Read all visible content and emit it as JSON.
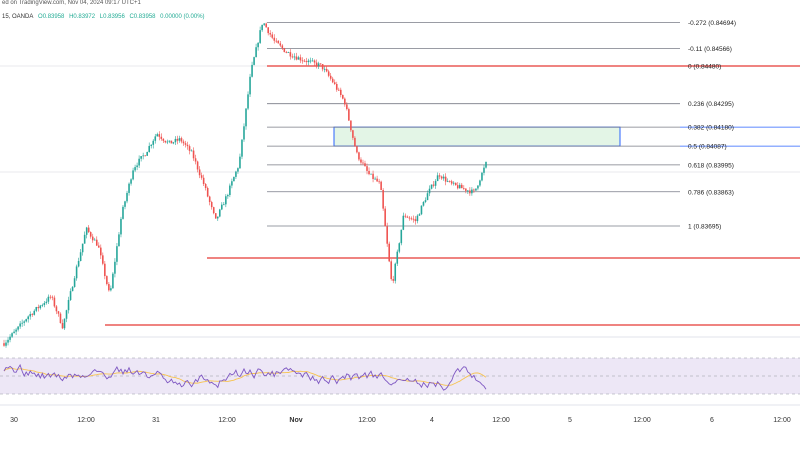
{
  "header": {
    "published": "ed on TradingView.com, Nov 04, 2024 09:17 UTC+1",
    "symbol_fragment": "15, OANDA",
    "ohlc": [
      {
        "text": "O0.83958",
        "color": "#22ab94"
      },
      {
        "text": "H0.83972",
        "color": "#22ab94"
      },
      {
        "text": "L0.83956",
        "color": "#22ab94"
      },
      {
        "text": "C0.83958",
        "color": "#22ab94"
      },
      {
        "text": "0.00000 (0.00%)",
        "color": "#22ab94"
      }
    ]
  },
  "colors": {
    "bull": "#26a69a",
    "bear": "#ef5350",
    "level_line": "#e53935",
    "fib_line": "#787b86",
    "zone_fill": "#e3f5e6",
    "zone_border": "#2962ff",
    "rsi_line": "#7e57c2",
    "rsi_ma": "#f7c34f",
    "rsi_band": "#ede7f6"
  },
  "fib_levels": [
    {
      "ratio": -0.272,
      "label": "-0.272 (0.84694)"
    },
    {
      "ratio": -0.11,
      "label": "-0.11 (0.84566)"
    },
    {
      "ratio": 0,
      "label": "0 (0.84480)"
    },
    {
      "ratio": 0.236,
      "label": "0.236 (0.84295)"
    },
    {
      "ratio": 0.382,
      "label": "0.382 (0.84180)"
    },
    {
      "ratio": 0.5,
      "label": "0.5 (0.84087)"
    },
    {
      "ratio": 0.618,
      "label": "0.618 (0.83995)"
    },
    {
      "ratio": 0.786,
      "label": "0.786 (0.83863)"
    },
    {
      "ratio": 1,
      "label": "1 (0.83695)"
    }
  ],
  "x_axis": {
    "ticks": [
      "30",
      "12:00",
      "31",
      "12:00",
      "Nov",
      "12:00",
      "4",
      "12:00",
      "5",
      "12:00",
      "6",
      "12:00"
    ]
  },
  "chart_data": {
    "type": "candlestick",
    "y_scale_note": "price levels match fibonacci labels",
    "close_path": [
      0.8312,
      0.8318,
      0.8325,
      0.833,
      0.8335,
      0.832,
      0.8345,
      0.8368,
      0.836,
      0.8335,
      0.8375,
      0.8398,
      0.8405,
      0.8415,
      0.841,
      0.8412,
      0.8405,
      0.839,
      0.8372,
      0.8385,
      0.84,
      0.8445,
      0.847,
      0.846,
      0.8455,
      0.8452,
      0.845,
      0.8448,
      0.844,
      0.843,
      0.8405,
      0.8395,
      0.839,
      0.834,
      0.8375,
      0.8372,
      0.8385,
      0.8395,
      0.839,
      0.8388,
      0.8386,
      0.84
    ]
  }
}
